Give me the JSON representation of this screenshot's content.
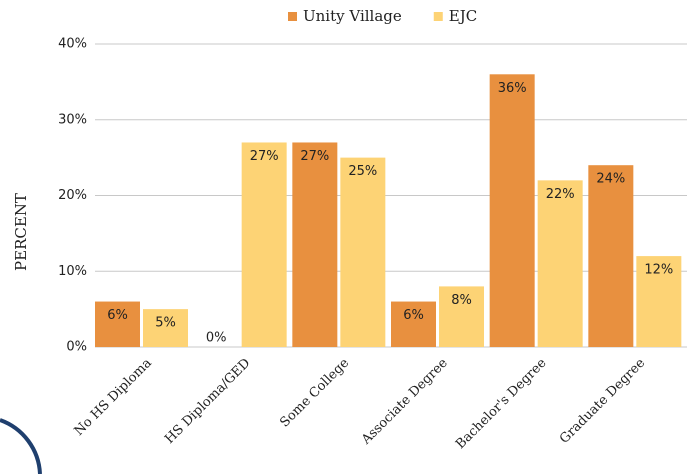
{
  "chart_data": {
    "type": "bar",
    "y_label": "PERCENT",
    "categories": [
      "No HS Diploma",
      "HS Diploma/GED",
      "Some College",
      "Associate Degree",
      "Bachelor's Degree",
      "Graduate Degree"
    ],
    "series": [
      {
        "name": "Unity Village",
        "color": "#e8903f",
        "values": [
          6,
          0,
          27,
          6,
          36,
          24
        ],
        "value_labels": [
          "6%",
          "0%",
          "27%",
          "6%",
          "36%",
          "24%"
        ]
      },
      {
        "name": "EJC",
        "color": "#fdd375",
        "values": [
          5,
          27,
          25,
          8,
          22,
          12
        ],
        "value_labels": [
          "5%",
          "27%",
          "25%",
          "8%",
          "22%",
          "12%"
        ]
      }
    ],
    "ylim": [
      0,
      40
    ],
    "yticks": [
      {
        "value": 0,
        "label": "0%"
      },
      {
        "value": 10,
        "label": "10%"
      },
      {
        "value": 20,
        "label": "20%"
      },
      {
        "value": 30,
        "label": "30%"
      },
      {
        "value": 40,
        "label": "40%"
      }
    ],
    "grid": true,
    "legend": "top"
  }
}
